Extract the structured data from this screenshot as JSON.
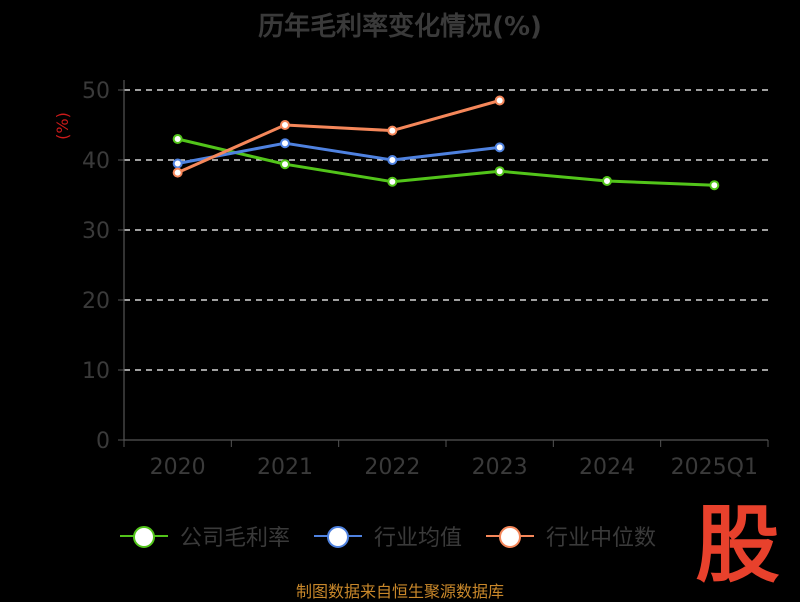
{
  "title": "历年毛利率变化情况(%)",
  "source": "制图数据来自恒生聚源数据库",
  "logo_text": "股",
  "legend": [
    {
      "label": "公司毛利率",
      "color": "#52c41a"
    },
    {
      "label": "行业均值",
      "color": "#4f82e0"
    },
    {
      "label": "行业中位数",
      "color": "#f5875a"
    }
  ],
  "chart_data": {
    "type": "line",
    "title": "历年毛利率变化情况(%)",
    "ylabel": "(%)",
    "xlabel": "",
    "categories": [
      "2020",
      "2021",
      "2022",
      "2023",
      "2024",
      "2025Q1"
    ],
    "ylim": [
      0,
      50
    ],
    "yticks": [
      0,
      10,
      20,
      30,
      40,
      50
    ],
    "grid": true,
    "legend_position": "bottom",
    "series": [
      {
        "name": "公司毛利率",
        "color": "#52c41a",
        "values": [
          43.0,
          39.4,
          36.9,
          38.4,
          37.0,
          36.4
        ]
      },
      {
        "name": "行业均值",
        "color": "#4f82e0",
        "values": [
          39.5,
          42.4,
          40.0,
          41.8,
          null,
          null
        ]
      },
      {
        "name": "行业中位数",
        "color": "#f5875a",
        "values": [
          38.2,
          45.0,
          44.2,
          48.5,
          null,
          null
        ]
      }
    ]
  }
}
